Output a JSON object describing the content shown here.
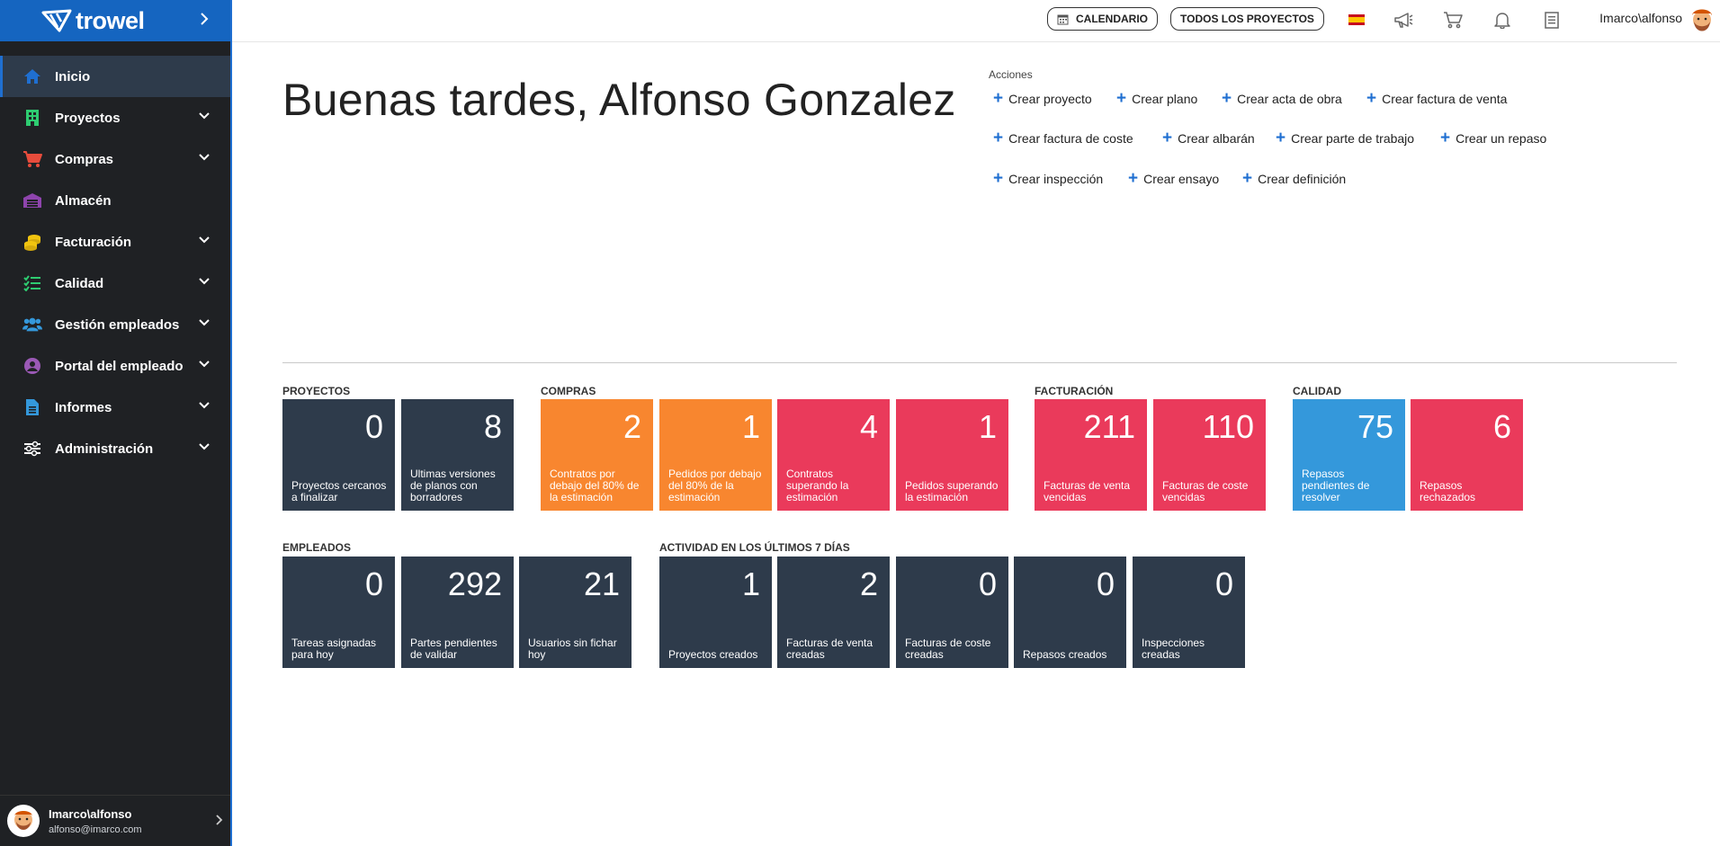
{
  "brand": {
    "name": "trowel"
  },
  "sidebar": {
    "items": [
      {
        "label": "Inicio",
        "icon": "home-icon",
        "color": "#1f6fd1",
        "active": true,
        "expandable": false
      },
      {
        "label": "Proyectos",
        "icon": "building-icon",
        "color": "#2ecc71",
        "expandable": true
      },
      {
        "label": "Compras",
        "icon": "cart-icon",
        "color": "#e74c3c",
        "expandable": true
      },
      {
        "label": "Almacén",
        "icon": "warehouse-icon",
        "color": "#8e44ad",
        "expandable": false
      },
      {
        "label": "Facturación",
        "icon": "coins-icon",
        "color": "#f1c40f",
        "expandable": true
      },
      {
        "label": "Calidad",
        "icon": "checklist-icon",
        "color": "#2ecc71",
        "expandable": true
      },
      {
        "label": "Gestión empleados",
        "icon": "users-icon",
        "color": "#3498db",
        "expandable": true
      },
      {
        "label": "Portal del empleado",
        "icon": "user-circle-icon",
        "color": "#9b59b6",
        "expandable": true
      },
      {
        "label": "Informes",
        "icon": "document-icon",
        "color": "#3498db",
        "expandable": true
      },
      {
        "label": "Administración",
        "icon": "sliders-icon",
        "color": "#ffffff",
        "expandable": true
      }
    ]
  },
  "user": {
    "name": "Imarco\\alfonso",
    "email": "alfonso@imarco.com"
  },
  "topbar": {
    "calendar_label": "CALENDARIO",
    "all_projects_label": "TODOS LOS PROYECTOS",
    "user_label": "Imarco\\alfonso"
  },
  "greeting": "Buenas tardes, Alfonso Gonzalez",
  "actions": {
    "title": "Acciones",
    "items": [
      "Crear proyecto",
      "Crear plano",
      "Crear acta de obra",
      "Crear factura de venta",
      "Crear factura de coste",
      "Crear albarán",
      "Crear parte de trabajo",
      "Crear un repaso",
      "Crear inspección",
      "Crear ensayo",
      "Crear definición"
    ]
  },
  "sections": {
    "proyectos": {
      "title": "PROYECTOS",
      "tiles": [
        {
          "value": "0",
          "label": "Proyectos cercanos a finalizar"
        },
        {
          "value": "8",
          "label": "Ultimas versiones de planos con borradores"
        }
      ]
    },
    "compras": {
      "title": "COMPRAS",
      "tiles": [
        {
          "value": "2",
          "label": "Contratos por debajo del 80% de la estimación"
        },
        {
          "value": "1",
          "label": "Pedidos por debajo del 80% de la estimación"
        },
        {
          "value": "4",
          "label": "Contratos superando la estimación"
        },
        {
          "value": "1",
          "label": "Pedidos superando la estimación"
        }
      ]
    },
    "facturacion": {
      "title": "FACTURACIÓN",
      "tiles": [
        {
          "value": "211",
          "label": "Facturas de venta vencidas"
        },
        {
          "value": "110",
          "label": "Facturas de coste vencidas"
        }
      ]
    },
    "calidad": {
      "title": "CALIDAD",
      "tiles": [
        {
          "value": "75",
          "label": "Repasos pendientes de resolver"
        },
        {
          "value": "6",
          "label": "Repasos rechazados"
        }
      ]
    },
    "empleados": {
      "title": "EMPLEADOS",
      "tiles": [
        {
          "value": "0",
          "label": "Tareas asignadas para hoy"
        },
        {
          "value": "292",
          "label": "Partes pendientes de validar"
        },
        {
          "value": "21",
          "label": "Usuarios sin fichar hoy"
        }
      ]
    },
    "actividad": {
      "title": "ACTIVIDAD EN LOS ÚLTIMOS 7 DÍAS",
      "tiles": [
        {
          "value": "1",
          "label": "Proyectos creados"
        },
        {
          "value": "2",
          "label": "Facturas de venta creadas"
        },
        {
          "value": "0",
          "label": "Facturas de coste creadas"
        },
        {
          "value": "0",
          "label": "Repasos creados"
        },
        {
          "value": "0",
          "label": "Inspecciones creadas"
        }
      ]
    }
  },
  "colors": {
    "sidebar_bg": "#1f2124",
    "brand_bg": "#1565c0",
    "tile_dark": "#2e3b4b",
    "tile_orange": "#f8862f",
    "tile_red": "#ea3a5b",
    "tile_blue": "#3498db"
  }
}
